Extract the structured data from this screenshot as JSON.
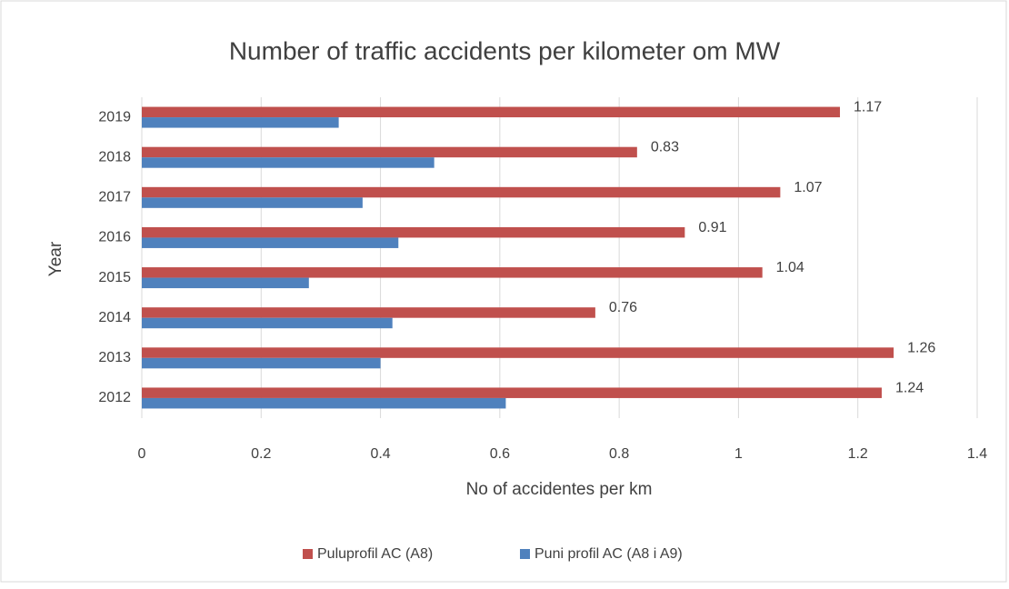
{
  "chart_data": {
    "type": "hbar",
    "title": "Number of traffic accidents per kilometer om MW",
    "x_label": "No of accidentes per km",
    "y_label": "Year",
    "categories": [
      "2012",
      "2013",
      "2014",
      "2015",
      "2016",
      "2017",
      "2018",
      "2019"
    ],
    "series": [
      {
        "name": "Puluprofil AC (A8)",
        "color": "#c0504d",
        "values": [
          1.24,
          1.26,
          0.76,
          1.04,
          0.91,
          1.07,
          0.83,
          1.17
        ]
      },
      {
        "name": "Puni profil AC (A8 i A9)",
        "color": "#4f81bd",
        "values": [
          0.61,
          0.4,
          0.42,
          0.28,
          0.43,
          0.37,
          0.49,
          0.33
        ]
      }
    ],
    "xlim": [
      0,
      1.4
    ],
    "xticks": [
      0,
      0.2,
      0.4,
      0.6,
      0.8,
      1,
      1.2,
      1.4
    ],
    "grid": true,
    "legend": "bottom",
    "data_labels_series": 0
  }
}
